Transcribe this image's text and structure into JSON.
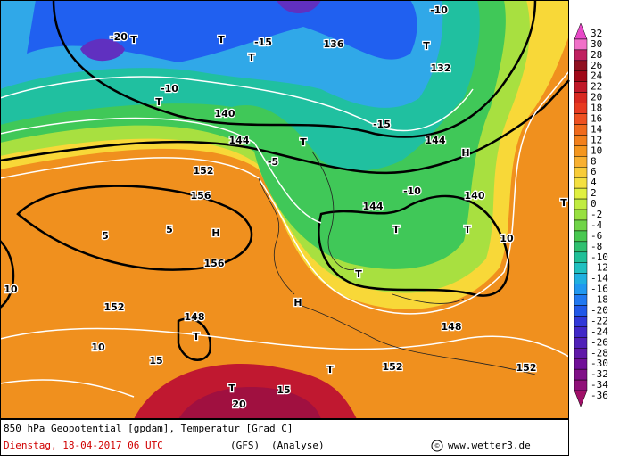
{
  "map": {
    "labels": [
      "T",
      "T",
      "T",
      "T",
      "T",
      "T",
      "T",
      "T",
      "T",
      "T",
      "T",
      "T",
      "T",
      "H",
      "H",
      "H",
      "-20",
      "-15",
      "-10",
      "-10",
      "-5",
      "-10",
      "136",
      "144",
      "144",
      "152",
      "156",
      "156",
      "152",
      "148",
      "5",
      "5",
      "10",
      "10",
      "15",
      "20",
      "152",
      "140",
      "144",
      "10",
      "148",
      "152",
      "132",
      "140",
      "-15",
      "15"
    ]
  },
  "legend": {
    "values": [
      32,
      30,
      28,
      26,
      24,
      22,
      20,
      18,
      16,
      14,
      12,
      10,
      8,
      6,
      4,
      2,
      0,
      -2,
      -4,
      -6,
      -8,
      -10,
      -12,
      -14,
      -16,
      -18,
      -20,
      -22,
      -24,
      -26,
      -28,
      -30,
      -32,
      -34,
      -36
    ],
    "colors": [
      "#e848c8",
      "#f070c8",
      "#c02060",
      "#901020",
      "#a00818",
      "#c01828",
      "#d82820",
      "#e83a20",
      "#ee5020",
      "#f06a1c",
      "#f2801c",
      "#f4961e",
      "#f8b030",
      "#f8cc38",
      "#f4e040",
      "#e0f040",
      "#c0ec40",
      "#98e040",
      "#70d448",
      "#48c850",
      "#30c070",
      "#20c098",
      "#20c0c0",
      "#20b0e0",
      "#2098f0",
      "#2078f0",
      "#2058e8",
      "#3038d8",
      "#4028c8",
      "#5020b8",
      "#6018a8",
      "#701098",
      "#801088",
      "#901078",
      "#a01068"
    ]
  },
  "footer": {
    "line1": "850 hPa Geopotential [gpdam], Temperatur [Grad C]",
    "date": "Dienstag, 18-04-2017  06 UTC",
    "model": "(GFS)",
    "analysis": "(Analyse)",
    "copyright": "©",
    "site": "www.wetter3.de"
  }
}
